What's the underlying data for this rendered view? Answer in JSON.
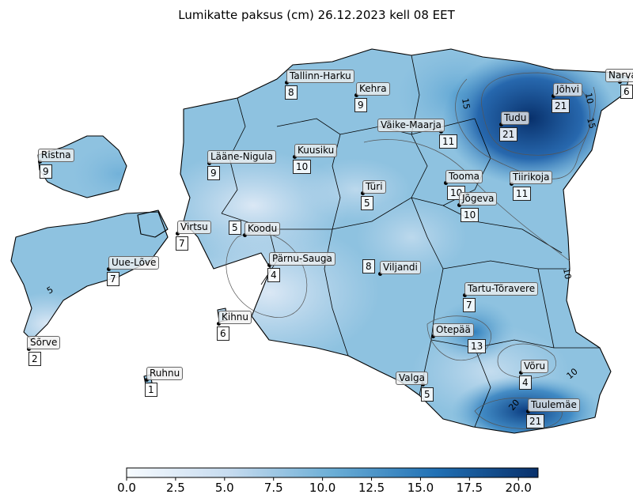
{
  "title": "Lumikatte paksus (cm) 26.12.2023 kell 08 EET",
  "legend": {
    "type": "colorbar",
    "range": [
      0,
      21
    ],
    "ticks": [
      "0.0",
      "2.5",
      "5.0",
      "7.5",
      "10.0",
      "12.5",
      "15.0",
      "17.5",
      "20.0"
    ],
    "colors": [
      "#f7fbff",
      "#c6dbef",
      "#6baed6",
      "#2171b5",
      "#08306b"
    ]
  },
  "contour_labels": [
    "15",
    "10",
    "15",
    "10",
    "5",
    "20",
    "10"
  ],
  "stations": [
    {
      "name": "Tallinn-Harku",
      "value": "8"
    },
    {
      "name": "Kehra",
      "value": "9"
    },
    {
      "name": "Narva",
      "value": "6"
    },
    {
      "name": "Jõhvi",
      "value": "21"
    },
    {
      "name": "Väike-Maarja",
      "value": "11"
    },
    {
      "name": "Tudu",
      "value": "21"
    },
    {
      "name": "Ristna",
      "value": "9"
    },
    {
      "name": "Lääne-Nigula",
      "value": "9"
    },
    {
      "name": "Kuusiku",
      "value": "10"
    },
    {
      "name": "Tooma",
      "value": "10"
    },
    {
      "name": "Tiirikoja",
      "value": "11"
    },
    {
      "name": "Türi",
      "value": "5"
    },
    {
      "name": "Jõgeva",
      "value": "10"
    },
    {
      "name": "Virtsu",
      "value": "7"
    },
    {
      "name": "Koodu",
      "value": "5"
    },
    {
      "name": "Pärnu-Sauga",
      "value": "4"
    },
    {
      "name": "Viljandi",
      "value": "8"
    },
    {
      "name": "Uue-Lõve",
      "value": "7"
    },
    {
      "name": "Tartu-Tõravere",
      "value": "7"
    },
    {
      "name": "Kihnu",
      "value": "6"
    },
    {
      "name": "Otepää",
      "value": "13"
    },
    {
      "name": "Sõrve",
      "value": "2"
    },
    {
      "name": "Võru",
      "value": "4"
    },
    {
      "name": "Ruhnu",
      "value": "1"
    },
    {
      "name": "Valga",
      "value": "5"
    },
    {
      "name": "Tuulemäe",
      "value": "21"
    }
  ]
}
